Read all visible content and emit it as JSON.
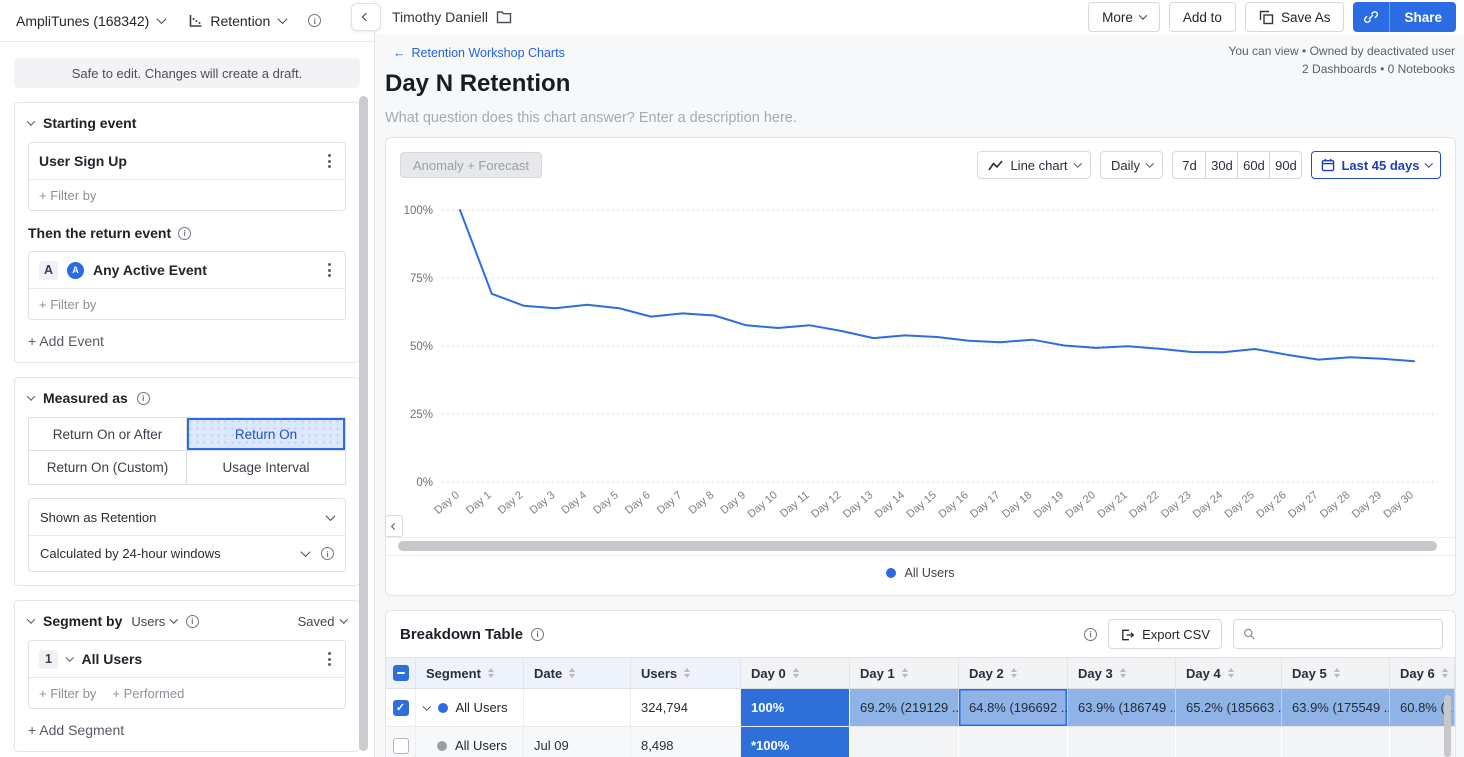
{
  "icons": {
    "back_arrow": "←"
  },
  "app": {
    "project": "AmpliTunes (168342)",
    "chart_type_label": "Retention",
    "owner": "Timothy Daniell",
    "breadcrumb": "Retention Workshop Charts",
    "title": "Day N Retention",
    "description_placeholder": "What question does this chart answer? Enter a description here.",
    "view_info": "You can view • Owned by deactivated user",
    "usage_info": "2 Dashboards • 0 Notebooks",
    "toolbar": {
      "more": "More",
      "add_to": "Add to",
      "save_as": "Save As",
      "share": "Share"
    }
  },
  "sidebar": {
    "banner": "Safe to edit. Changes will create a draft.",
    "starting_event": {
      "title": "Starting event",
      "event": "User Sign Up",
      "filter_label": "+ Filter by"
    },
    "return_event": {
      "title": "Then the return event",
      "badge": "A",
      "icon_letter": "A",
      "event": "Any Active Event",
      "filter_label": "+ Filter by",
      "add_label": "+ Add Event"
    },
    "measured_as": {
      "title": "Measured as",
      "options": [
        "Return On or After",
        "Return On",
        "Return On (Custom)",
        "Usage Interval"
      ],
      "selected": "Return On",
      "shown_as": "Shown as Retention",
      "calculated_by": "Calculated by 24-hour windows"
    },
    "segment_by": {
      "title": "Segment by",
      "entity": "Users",
      "saved": "Saved",
      "index": "1",
      "segment": "All Users",
      "filter_label": "+ Filter by",
      "performed_label": "+ Performed",
      "add_label": "+ Add Segment"
    }
  },
  "chart_panel": {
    "anomaly_button": "Anomaly + Forecast",
    "chart_type": "Line chart",
    "interval": "Daily",
    "ranges": [
      "7d",
      "30d",
      "60d",
      "90d"
    ],
    "date_range": "Last 45 days",
    "legend": "All Users"
  },
  "chart_data": {
    "type": "line",
    "title": "Day N Retention",
    "x": [
      "Day 0",
      "Day 1",
      "Day 2",
      "Day 3",
      "Day 4",
      "Day 5",
      "Day 6",
      "Day 7",
      "Day 8",
      "Day 9",
      "Day 10",
      "Day 11",
      "Day 12",
      "Day 13",
      "Day 14",
      "Day 15",
      "Day 16",
      "Day 17",
      "Day 18",
      "Day 19",
      "Day 20",
      "Day 21",
      "Day 22",
      "Day 23",
      "Day 24",
      "Day 25",
      "Day 26",
      "Day 27",
      "Day 28",
      "Day 29",
      "Day 30"
    ],
    "series": [
      {
        "name": "All Users",
        "color": "#2f6ce0",
        "values": [
          100,
          69.2,
          64.8,
          63.9,
          65.2,
          63.9,
          60.8,
          62.0,
          61.2,
          57.6,
          56.6,
          57.6,
          55.5,
          52.9,
          53.9,
          53.3,
          51.9,
          51.4,
          52.3,
          50.2,
          49.3,
          49.9,
          49.0,
          47.8,
          47.7,
          48.9,
          46.8,
          45.0,
          45.9,
          45.3,
          44.4
        ]
      }
    ],
    "ylim": [
      0,
      100
    ],
    "yticks": [
      {
        "label": "0%",
        "v": 0
      },
      {
        "label": "25%",
        "v": 25
      },
      {
        "label": "50%",
        "v": 50
      },
      {
        "label": "75%",
        "v": 75
      },
      {
        "label": "100%",
        "v": 100
      }
    ],
    "grid": "dotted-horizontal",
    "legend_position": "bottom"
  },
  "table": {
    "title": "Breakdown Table",
    "export_label": "Export CSV",
    "fixed_columns": [
      "Segment",
      "Date",
      "Users"
    ],
    "day_columns": [
      "Day 0",
      "Day 1",
      "Day 2",
      "Day 3",
      "Day 4",
      "Day 5",
      "Day 6"
    ],
    "rows": [
      {
        "checked": true,
        "expandable": true,
        "dot_color": "#2c6be4",
        "segment": "All Users",
        "date": "",
        "users": "324,794",
        "day_cells": [
          "100%",
          "69.2% (219129 ...",
          "64.8% (196692 ...",
          "63.9% (186749 ...",
          "65.2% (185663 ...",
          "63.9% (175549 ...",
          "60.8% (1"
        ]
      },
      {
        "checked": false,
        "expandable": false,
        "dot_color": "#9a9ea8",
        "segment": "All Users",
        "date": "Jul 09",
        "users": "8,498",
        "day_cells": [
          "*100%",
          "",
          "",
          "",
          "",
          "",
          ""
        ]
      }
    ]
  },
  "colors": {
    "accent": "#2b6be4",
    "line": "#2f6ce0",
    "day0_cell": "#2e6fd9",
    "day_cell": "#8fb3e6",
    "date_button_border": "#1e4cd7"
  }
}
